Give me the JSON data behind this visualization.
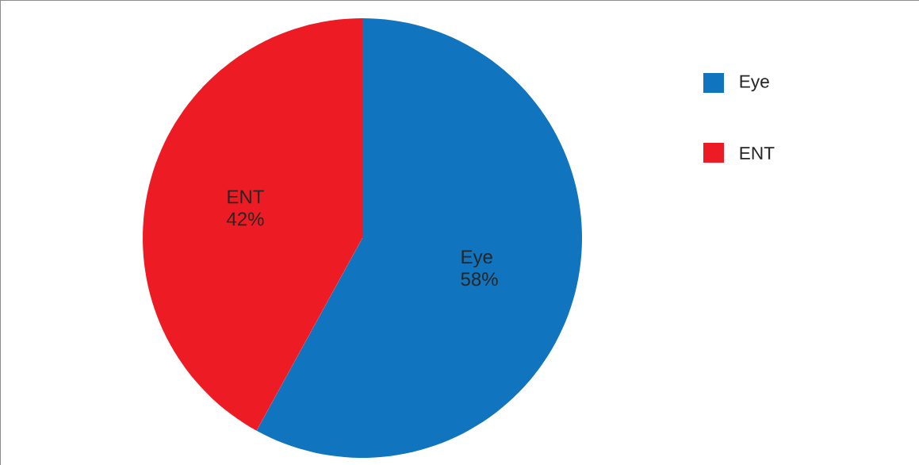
{
  "chart_data": {
    "type": "pie",
    "categories": [
      "Eye",
      "ENT"
    ],
    "values": [
      58,
      42
    ],
    "colors": [
      "#1174be",
      "#ed1c24"
    ],
    "value_labels": [
      "58%",
      "42%"
    ],
    "legend": "top right"
  }
}
